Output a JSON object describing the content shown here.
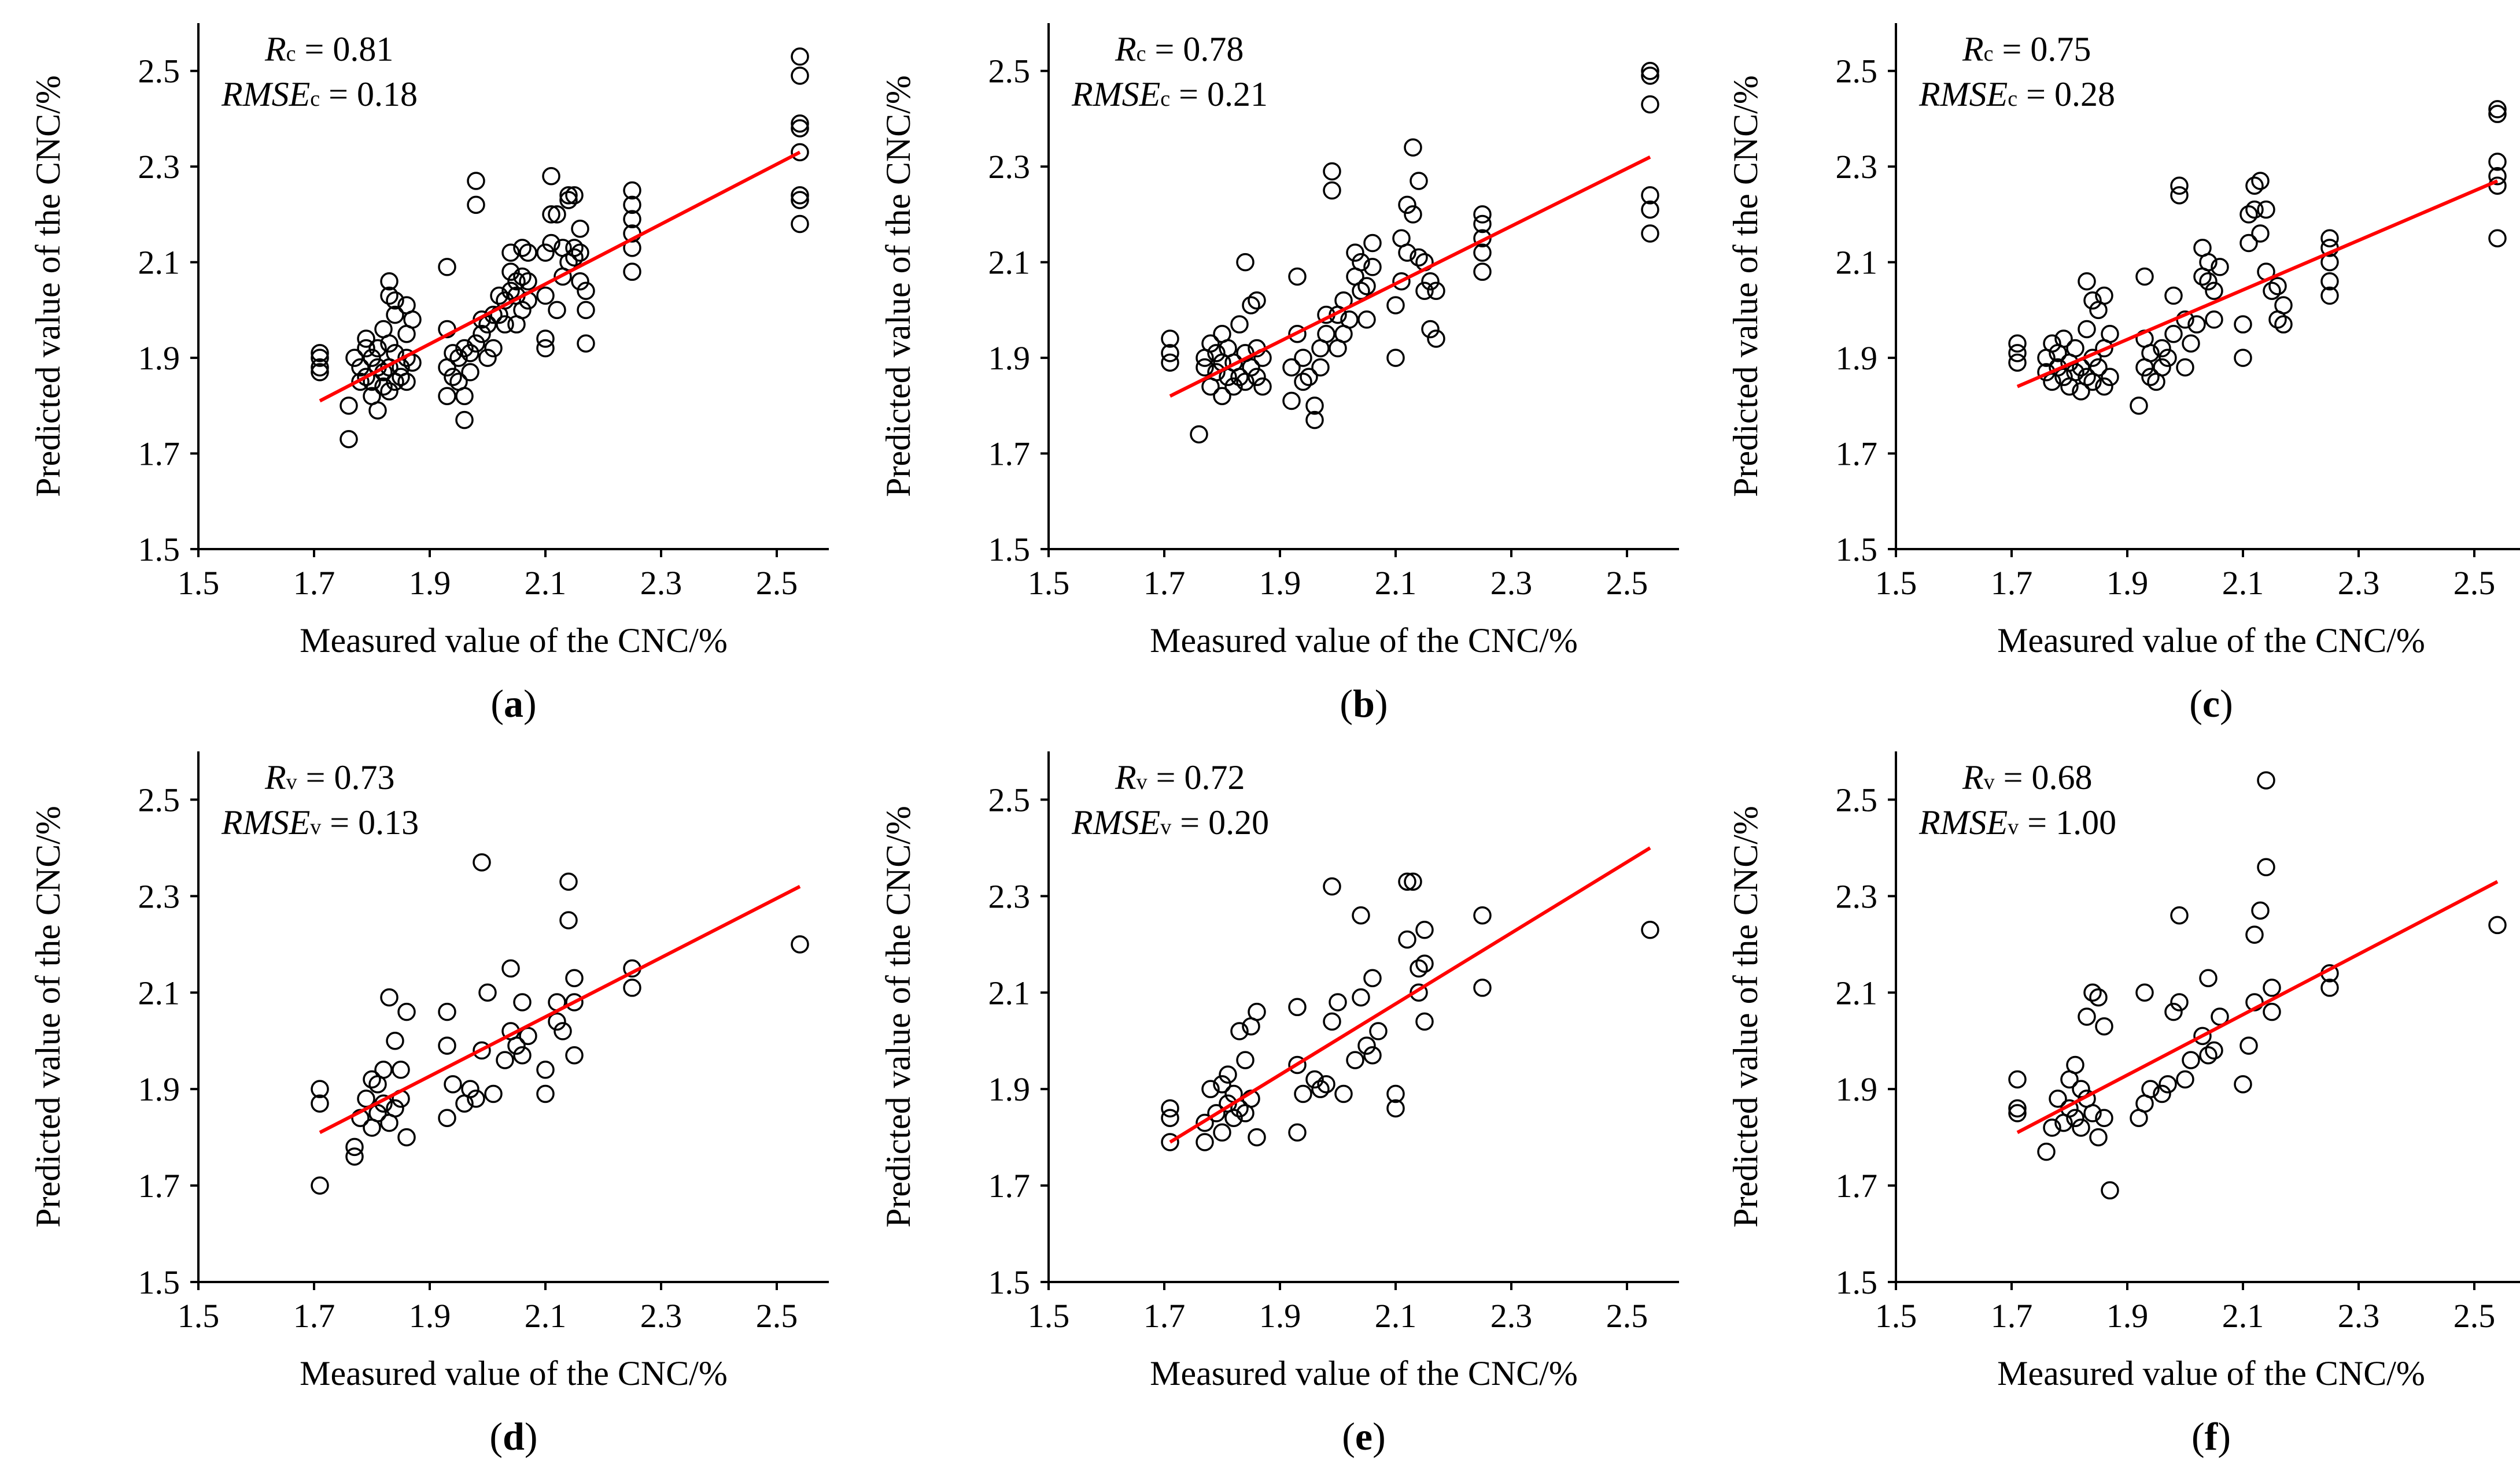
{
  "colors": {
    "points": "#000000",
    "fit_line": "#ff0000",
    "background": "#ffffff"
  },
  "chart_data": [
    {
      "type": "scatter",
      "panel_label": "a",
      "xlabel": "Measured value of the CNC/%",
      "ylabel": "Predicted value of the CNC/%",
      "xlim": [
        1.5,
        2.6
      ],
      "ylim": [
        1.5,
        2.6
      ],
      "xticks": [
        "1.5",
        "1.7",
        "1.9",
        "2.1",
        "2.3",
        "2.5"
      ],
      "yticks": [
        "1.5",
        "1.7",
        "1.9",
        "2.1",
        "2.3",
        "2.5"
      ],
      "stats": {
        "r_symbol": "R",
        "r_sub": "c",
        "r_value": "= 0.81",
        "rmse_symbol": "RMSE",
        "rmse_sub": "c",
        "rmse_value": "= 0.18"
      },
      "fit_line": {
        "x": [
          1.71,
          2.54
        ],
        "y": [
          1.81,
          2.33
        ]
      },
      "x": [
        1.71,
        1.71,
        1.71,
        1.71,
        1.76,
        1.76,
        1.77,
        1.78,
        1.78,
        1.79,
        1.79,
        1.79,
        1.8,
        1.8,
        1.8,
        1.81,
        1.81,
        1.81,
        1.82,
        1.82,
        1.82,
        1.83,
        1.83,
        1.83,
        1.83,
        1.83,
        1.84,
        1.84,
        1.84,
        1.84,
        1.85,
        1.85,
        1.86,
        1.86,
        1.86,
        1.86,
        1.87,
        1.87,
        1.93,
        1.93,
        1.93,
        1.93,
        1.94,
        1.94,
        1.95,
        1.95,
        1.96,
        1.96,
        1.96,
        1.97,
        1.97,
        1.98,
        1.98,
        1.98,
        1.99,
        1.99,
        2.0,
        2.0,
        2.01,
        2.01,
        2.02,
        2.02,
        2.03,
        2.03,
        2.04,
        2.04,
        2.04,
        2.05,
        2.05,
        2.05,
        2.06,
        2.06,
        2.06,
        2.07,
        2.07,
        2.07,
        2.1,
        2.1,
        2.1,
        2.1,
        2.11,
        2.11,
        2.11,
        2.12,
        2.12,
        2.13,
        2.13,
        2.14,
        2.14,
        2.14,
        2.15,
        2.15,
        2.15,
        2.16,
        2.16,
        2.16,
        2.17,
        2.17,
        2.17,
        2.25,
        2.25,
        2.25,
        2.25,
        2.25,
        2.25,
        2.54,
        2.54,
        2.54,
        2.54,
        2.54,
        2.54,
        2.54,
        2.54
      ],
      "y": [
        1.87,
        1.88,
        1.9,
        1.91,
        1.73,
        1.8,
        1.9,
        1.85,
        1.88,
        1.92,
        1.94,
        1.86,
        1.85,
        1.9,
        1.82,
        1.88,
        1.92,
        1.79,
        1.84,
        1.87,
        1.96,
        1.83,
        1.88,
        1.93,
        2.03,
        2.06,
        1.85,
        1.91,
        1.99,
        2.02,
        1.86,
        1.88,
        1.85,
        1.9,
        1.95,
        2.01,
        1.89,
        1.98,
        1.82,
        1.88,
        1.96,
        2.09,
        1.86,
        1.91,
        1.85,
        1.9,
        1.77,
        1.82,
        1.92,
        1.87,
        1.91,
        1.93,
        2.22,
        2.27,
        1.95,
        1.98,
        1.9,
        1.97,
        1.92,
        1.99,
        1.99,
        2.03,
        1.97,
        2.02,
        2.04,
        2.08,
        2.12,
        1.97,
        2.03,
        2.06,
        2.0,
        2.07,
        2.13,
        2.02,
        2.06,
        2.12,
        1.92,
        1.94,
        2.03,
        2.12,
        2.14,
        2.2,
        2.28,
        2.0,
        2.2,
        2.07,
        2.13,
        2.1,
        2.23,
        2.24,
        2.11,
        2.13,
        2.24,
        2.06,
        2.12,
        2.17,
        1.93,
        2.0,
        2.04,
        2.08,
        2.13,
        2.16,
        2.19,
        2.22,
        2.25,
        2.18,
        2.23,
        2.24,
        2.33,
        2.38,
        2.39,
        2.49,
        2.53
      ]
    },
    {
      "type": "scatter",
      "panel_label": "b",
      "xlabel": "Measured value of the CNC/%",
      "ylabel": "Predicted value of the CNC/%",
      "xlim": [
        1.5,
        2.6
      ],
      "ylim": [
        1.5,
        2.6
      ],
      "xticks": [
        "1.5",
        "1.7",
        "1.9",
        "2.1",
        "2.3",
        "2.5"
      ],
      "yticks": [
        "1.5",
        "1.7",
        "1.9",
        "2.1",
        "2.3",
        "2.5"
      ],
      "stats": {
        "r_symbol": "R",
        "r_sub": "c",
        "r_value": "= 0.78",
        "rmse_symbol": "RMSE",
        "rmse_sub": "c",
        "rmse_value": "= 0.21"
      },
      "fit_line": {
        "x": [
          1.71,
          2.54
        ],
        "y": [
          1.82,
          2.32
        ]
      },
      "x": [
        1.71,
        1.71,
        1.71,
        1.76,
        1.77,
        1.77,
        1.78,
        1.78,
        1.79,
        1.79,
        1.8,
        1.8,
        1.8,
        1.81,
        1.81,
        1.82,
        1.82,
        1.83,
        1.83,
        1.84,
        1.84,
        1.84,
        1.85,
        1.85,
        1.86,
        1.86,
        1.86,
        1.87,
        1.87,
        1.92,
        1.92,
        1.93,
        1.93,
        1.94,
        1.94,
        1.95,
        1.96,
        1.96,
        1.97,
        1.97,
        1.98,
        1.98,
        1.99,
        1.99,
        2.0,
        2.0,
        2.01,
        2.01,
        2.02,
        2.03,
        2.03,
        2.04,
        2.04,
        2.05,
        2.05,
        2.06,
        2.06,
        2.1,
        2.1,
        2.11,
        2.11,
        2.12,
        2.12,
        2.13,
        2.13,
        2.14,
        2.14,
        2.15,
        2.15,
        2.16,
        2.16,
        2.17,
        2.17,
        2.25,
        2.25,
        2.25,
        2.25,
        2.25,
        2.54,
        2.54,
        2.54,
        2.54,
        2.54,
        2.54
      ],
      "y": [
        1.89,
        1.91,
        1.94,
        1.74,
        1.88,
        1.9,
        1.84,
        1.93,
        1.87,
        1.91,
        1.82,
        1.89,
        1.95,
        1.86,
        1.92,
        1.84,
        1.89,
        1.86,
        1.97,
        1.85,
        1.91,
        2.1,
        1.88,
        2.01,
        1.86,
        1.92,
        2.02,
        1.84,
        1.9,
        1.81,
        1.88,
        1.95,
        2.07,
        1.85,
        1.9,
        1.86,
        1.77,
        1.8,
        1.88,
        1.92,
        1.95,
        1.99,
        2.25,
        2.29,
        1.92,
        1.99,
        1.95,
        2.02,
        1.98,
        2.07,
        2.12,
        2.04,
        2.1,
        1.98,
        2.05,
        2.09,
        2.14,
        1.9,
        2.01,
        2.06,
        2.15,
        2.12,
        2.22,
        2.2,
        2.34,
        2.11,
        2.27,
        2.04,
        2.1,
        1.96,
        2.06,
        1.94,
        2.04,
        2.08,
        2.12,
        2.15,
        2.18,
        2.2,
        2.16,
        2.21,
        2.24,
        2.43,
        2.49,
        2.5
      ]
    },
    {
      "type": "scatter",
      "panel_label": "c",
      "xlabel": "Measured value of the CNC/%",
      "ylabel": "Predicted value of the CNC/%",
      "xlim": [
        1.5,
        2.6
      ],
      "ylim": [
        1.5,
        2.6
      ],
      "xticks": [
        "1.5",
        "1.7",
        "1.9",
        "2.1",
        "2.3",
        "2.5"
      ],
      "yticks": [
        "1.5",
        "1.7",
        "1.9",
        "2.1",
        "2.3",
        "2.5"
      ],
      "stats": {
        "r_symbol": "R",
        "r_sub": "c",
        "r_value": "= 0.75",
        "rmse_symbol": "RMSE",
        "rmse_sub": "c",
        "rmse_value": "= 0.28"
      },
      "fit_line": {
        "x": [
          1.71,
          2.54
        ],
        "y": [
          1.84,
          2.27
        ]
      },
      "x": [
        1.71,
        1.71,
        1.71,
        1.76,
        1.76,
        1.77,
        1.77,
        1.78,
        1.78,
        1.79,
        1.79,
        1.8,
        1.8,
        1.81,
        1.81,
        1.82,
        1.82,
        1.83,
        1.83,
        1.83,
        1.84,
        1.84,
        1.84,
        1.85,
        1.85,
        1.86,
        1.86,
        1.86,
        1.87,
        1.87,
        1.92,
        1.93,
        1.93,
        1.93,
        1.94,
        1.94,
        1.95,
        1.96,
        1.96,
        1.97,
        1.98,
        1.98,
        1.99,
        1.99,
        2.0,
        2.0,
        2.01,
        2.02,
        2.03,
        2.03,
        2.04,
        2.04,
        2.05,
        2.05,
        2.06,
        2.1,
        2.1,
        2.11,
        2.11,
        2.12,
        2.12,
        2.13,
        2.13,
        2.14,
        2.14,
        2.15,
        2.16,
        2.16,
        2.17,
        2.17,
        2.25,
        2.25,
        2.25,
        2.25,
        2.25,
        2.54,
        2.54,
        2.54,
        2.54,
        2.54,
        2.54
      ],
      "y": [
        1.89,
        1.91,
        1.93,
        1.87,
        1.9,
        1.85,
        1.93,
        1.88,
        1.91,
        1.86,
        1.94,
        1.84,
        1.89,
        1.87,
        1.92,
        1.83,
        1.88,
        1.86,
        1.96,
        2.06,
        1.85,
        1.9,
        2.02,
        1.88,
        2.0,
        1.84,
        1.92,
        2.03,
        1.86,
        1.95,
        1.8,
        1.88,
        1.94,
        2.07,
        1.86,
        1.91,
        1.85,
        1.88,
        1.92,
        1.9,
        1.95,
        2.03,
        2.24,
        2.26,
        1.88,
        1.98,
        1.93,
        1.97,
        2.07,
        2.13,
        2.06,
        2.1,
        1.98,
        2.04,
        2.09,
        1.9,
        1.97,
        2.14,
        2.2,
        2.21,
        2.26,
        2.16,
        2.27,
        2.08,
        2.21,
        2.04,
        1.98,
        2.05,
        1.97,
        2.01,
        2.03,
        2.06,
        2.1,
        2.13,
        2.15,
        2.15,
        2.26,
        2.28,
        2.31,
        2.41,
        2.42
      ]
    },
    {
      "type": "scatter",
      "panel_label": "d",
      "xlabel": "Measured value of the CNC/%",
      "ylabel": "Predicted value of the CNC/%",
      "xlim": [
        1.5,
        2.6
      ],
      "ylim": [
        1.5,
        2.6
      ],
      "xticks": [
        "1.5",
        "1.7",
        "1.9",
        "2.1",
        "2.3",
        "2.5"
      ],
      "yticks": [
        "1.5",
        "1.7",
        "1.9",
        "2.1",
        "2.3",
        "2.5"
      ],
      "stats": {
        "r_symbol": "R",
        "r_sub": "v",
        "r_value": "= 0.73",
        "rmse_symbol": "RMSE",
        "rmse_sub": "v",
        "rmse_value": "= 0.13"
      },
      "fit_line": {
        "x": [
          1.71,
          2.54
        ],
        "y": [
          1.81,
          2.32
        ]
      },
      "x": [
        1.71,
        1.71,
        1.71,
        1.77,
        1.77,
        1.78,
        1.79,
        1.8,
        1.8,
        1.81,
        1.81,
        1.82,
        1.82,
        1.83,
        1.83,
        1.84,
        1.84,
        1.85,
        1.85,
        1.86,
        1.86,
        1.93,
        1.93,
        1.93,
        1.94,
        1.96,
        1.97,
        1.98,
        1.99,
        1.99,
        2.0,
        2.01,
        2.03,
        2.04,
        2.04,
        2.05,
        2.06,
        2.06,
        2.07,
        2.1,
        2.1,
        2.12,
        2.12,
        2.13,
        2.14,
        2.14,
        2.15,
        2.15,
        2.15,
        2.25,
        2.25,
        2.54
      ],
      "y": [
        1.7,
        1.87,
        1.9,
        1.76,
        1.78,
        1.84,
        1.88,
        1.82,
        1.92,
        1.85,
        1.91,
        1.87,
        1.94,
        1.83,
        2.09,
        1.86,
        2.0,
        1.88,
        1.94,
        1.8,
        2.06,
        1.84,
        1.99,
        2.06,
        1.91,
        1.87,
        1.9,
        1.88,
        1.98,
        2.37,
        2.1,
        1.89,
        1.96,
        2.02,
        2.15,
        1.99,
        1.97,
        2.08,
        2.01,
        1.89,
        1.94,
        2.04,
        2.08,
        2.02,
        2.25,
        2.33,
        1.97,
        2.08,
        2.13,
        2.11,
        2.15,
        2.2
      ]
    },
    {
      "type": "scatter",
      "panel_label": "e",
      "xlabel": "Measured value of the CNC/%",
      "ylabel": "Predicted value of the CNC/%",
      "xlim": [
        1.5,
        2.6
      ],
      "ylim": [
        1.5,
        2.6
      ],
      "xticks": [
        "1.5",
        "1.7",
        "1.9",
        "2.1",
        "2.3",
        "2.5"
      ],
      "yticks": [
        "1.5",
        "1.7",
        "1.9",
        "2.1",
        "2.3",
        "2.5"
      ],
      "stats": {
        "r_symbol": "R",
        "r_sub": "v",
        "r_value": "= 0.72",
        "rmse_symbol": "RMSE",
        "rmse_sub": "v",
        "rmse_value": "= 0.20"
      },
      "fit_line": {
        "x": [
          1.71,
          2.54
        ],
        "y": [
          1.79,
          2.4
        ]
      },
      "x": [
        1.71,
        1.71,
        1.71,
        1.77,
        1.77,
        1.78,
        1.79,
        1.8,
        1.8,
        1.81,
        1.81,
        1.82,
        1.82,
        1.83,
        1.83,
        1.84,
        1.84,
        1.85,
        1.85,
        1.86,
        1.86,
        1.93,
        1.93,
        1.93,
        1.94,
        1.96,
        1.97,
        1.98,
        1.99,
        1.99,
        2.0,
        2.01,
        2.03,
        2.04,
        2.04,
        2.05,
        2.06,
        2.06,
        2.07,
        2.1,
        2.1,
        2.12,
        2.12,
        2.13,
        2.14,
        2.14,
        2.15,
        2.15,
        2.15,
        2.25,
        2.25,
        2.54
      ],
      "y": [
        1.79,
        1.84,
        1.86,
        1.79,
        1.83,
        1.9,
        1.85,
        1.81,
        1.91,
        1.87,
        1.93,
        1.84,
        1.89,
        1.86,
        2.02,
        1.85,
        1.96,
        1.88,
        2.03,
        1.8,
        2.06,
        1.81,
        1.95,
        2.07,
        1.89,
        1.92,
        1.9,
        1.91,
        2.04,
        2.32,
        2.08,
        1.89,
        1.96,
        2.09,
        2.26,
        1.99,
        1.97,
        2.13,
        2.02,
        1.86,
        1.89,
        2.33,
        2.21,
        2.33,
        2.1,
        2.15,
        2.04,
        2.16,
        2.23,
        2.11,
        2.26,
        2.23
      ]
    },
    {
      "type": "scatter",
      "panel_label": "f",
      "xlabel": "Measured value of the CNC/%",
      "ylabel": "Predicted value of the CNC/%",
      "xlim": [
        1.5,
        2.6
      ],
      "ylim": [
        1.5,
        2.6
      ],
      "xticks": [
        "1.5",
        "1.7",
        "1.9",
        "2.1",
        "2.3",
        "2.5"
      ],
      "yticks": [
        "1.5",
        "1.7",
        "1.9",
        "2.1",
        "2.3",
        "2.5"
      ],
      "stats": {
        "r_symbol": "R",
        "r_sub": "v",
        "r_value": "= 0.68",
        "rmse_symbol": "RMSE",
        "rmse_sub": "v",
        "rmse_value": "= 1.00"
      },
      "fit_line": {
        "x": [
          1.71,
          2.54
        ],
        "y": [
          1.81,
          2.33
        ]
      },
      "x": [
        1.71,
        1.71,
        1.71,
        1.76,
        1.77,
        1.78,
        1.79,
        1.8,
        1.8,
        1.81,
        1.81,
        1.82,
        1.82,
        1.83,
        1.83,
        1.84,
        1.84,
        1.85,
        1.85,
        1.86,
        1.86,
        1.87,
        1.92,
        1.93,
        1.93,
        1.94,
        1.96,
        1.97,
        1.98,
        1.99,
        1.99,
        2.0,
        2.01,
        2.03,
        2.04,
        2.04,
        2.05,
        2.06,
        2.1,
        2.11,
        2.12,
        2.12,
        2.13,
        2.14,
        2.14,
        2.15,
        2.15,
        2.25,
        2.25,
        2.54
      ],
      "y": [
        1.85,
        1.86,
        1.92,
        1.77,
        1.82,
        1.88,
        1.83,
        1.86,
        1.92,
        1.84,
        1.95,
        1.82,
        1.9,
        1.88,
        2.05,
        1.85,
        2.1,
        1.8,
        2.09,
        1.84,
        2.03,
        1.69,
        1.84,
        1.87,
        2.1,
        1.9,
        1.89,
        1.91,
        2.06,
        2.08,
        2.26,
        1.92,
        1.96,
        2.01,
        2.13,
        1.97,
        1.98,
        2.05,
        1.91,
        1.99,
        2.22,
        2.08,
        2.27,
        2.36,
        2.54,
        2.06,
        2.11,
        2.11,
        2.14,
        2.24
      ]
    }
  ]
}
